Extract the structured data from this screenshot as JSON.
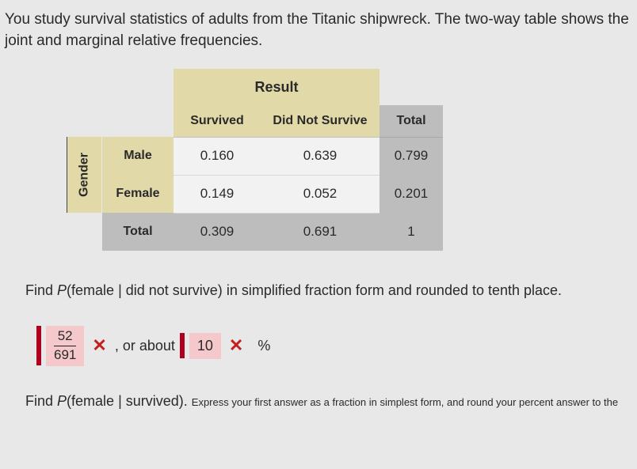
{
  "problem": {
    "text": "You study survival statistics of adults from the Titanic shipwreck. The two-way table shows the joint and marginal relative frequencies."
  },
  "table": {
    "result_label": "Result",
    "col_headers": {
      "survived": "Survived",
      "not_survived": "Did Not Survive",
      "total": "Total"
    },
    "gender_label": "Gender",
    "rows": {
      "male": {
        "label": "Male",
        "survived": "0.160",
        "not_survived": "0.639",
        "total": "0.799"
      },
      "female": {
        "label": "Female",
        "survived": "0.149",
        "not_survived": "0.052",
        "total": "0.201"
      },
      "total": {
        "label": "Total",
        "survived": "0.309",
        "not_survived": "0.691",
        "total": "1"
      }
    },
    "colors": {
      "header_bg": "#e2d9a8",
      "data_bg": "#f2f2f2",
      "total_bg": "#bdbdbd",
      "page_bg": "#e8e8e8"
    }
  },
  "question1": {
    "prefix": "Find ",
    "prob": "P",
    "expr": "(female | did not survive)",
    "suffix": " in simplified fraction form and rounded to tenth place."
  },
  "answer1": {
    "numerator": "52",
    "denominator": "691",
    "about": ", or about",
    "percent_value": "10",
    "percent_sign": "%",
    "mark": "✕",
    "mark_color": "#c41e1e",
    "box_bg": "#f5c9cc",
    "bar_color": "#b00020"
  },
  "question2": {
    "prefix": "Find ",
    "prob": "P",
    "expr": "(female | survived). ",
    "small": "Express your first answer as a fraction in simplest form, and round your percent answer to the"
  }
}
